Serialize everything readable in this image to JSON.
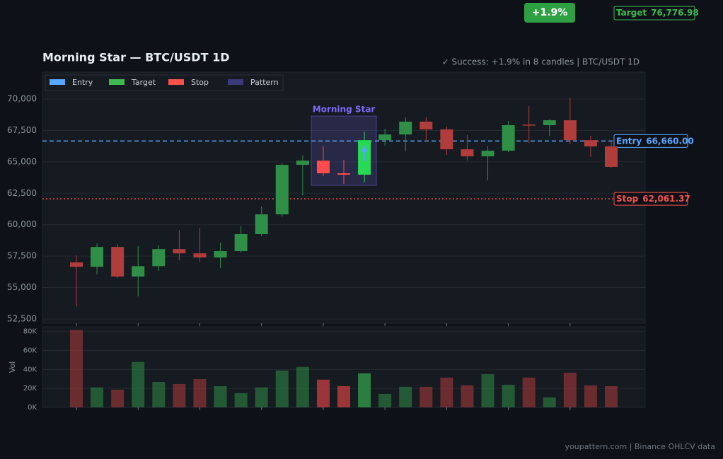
{
  "chart_data": [
    {
      "type": "candlestick",
      "title": "Morning Star  —  BTC/USDT 1D",
      "subtitle": "✓ Success: +1.9% in 8 candles  |  BTC/USDT 1D",
      "result": "+1.9%",
      "up_color": "#2f8f47",
      "down_color": "#b13c3c",
      "open": [
        57000,
        56650,
        58230,
        55870,
        56700,
        58060,
        57720,
        57390,
        57900,
        59250,
        60820,
        64760,
        65100,
        64090,
        63980,
        66730,
        67180,
        68200,
        67580,
        66000,
        65440,
        65890,
        67970,
        67920,
        68310,
        66730,
        66230
      ],
      "high": [
        57550,
        58510,
        58460,
        58290,
        58350,
        59580,
        59750,
        58570,
        59870,
        61440,
        64880,
        65500,
        66230,
        65160,
        67410,
        67640,
        68540,
        68540,
        67800,
        67130,
        66230,
        68250,
        69440,
        68370,
        70110,
        67070,
        66730
      ],
      "low": [
        53500,
        56040,
        55760,
        54290,
        56320,
        57160,
        57050,
        56540,
        57780,
        59080,
        60650,
        62340,
        63860,
        63240,
        63360,
        66290,
        65830,
        66620,
        65550,
        65100,
        63530,
        65780,
        66510,
        67070,
        66400,
        65390,
        64540
      ],
      "close": [
        56650,
        58230,
        55870,
        56700,
        58060,
        57720,
        57390,
        57900,
        59250,
        60820,
        64760,
        65100,
        64090,
        63980,
        66730,
        67180,
        68200,
        67580,
        66000,
        65440,
        65890,
        67920,
        67920,
        68310,
        66730,
        66230,
        64600
      ],
      "ylim": [
        52160,
        72140
      ],
      "yticks": [
        {
          "value": 52500,
          "label": "52,500"
        },
        {
          "value": 55000,
          "label": "55,000"
        },
        {
          "value": 57500,
          "label": "57,500"
        },
        {
          "value": 60000,
          "label": "60,000"
        },
        {
          "value": 62500,
          "label": "62,500"
        },
        {
          "value": 65000,
          "label": "65,000"
        },
        {
          "value": 67500,
          "label": "67,500"
        },
        {
          "value": 70000,
          "label": "70,000"
        }
      ],
      "grid": true,
      "pattern": {
        "label": "Morning Star",
        "start": 12,
        "end": 14,
        "color": "#7b6cf6"
      },
      "levels": [
        {
          "name": "Entry",
          "value": 66660,
          "label": "66,660.00",
          "color": "#58a6ff",
          "style": "dashed"
        },
        {
          "name": "Target",
          "value": 76776.98,
          "label": "76,776.98",
          "color": "#3fb950",
          "style": "dashed"
        },
        {
          "name": "Stop",
          "value": 62061.37,
          "label": "62,061.37",
          "color": "#f85149",
          "style": "dotted"
        }
      ],
      "legend": [
        {
          "name": "Entry",
          "color": "#58a6ff"
        },
        {
          "name": "Target",
          "color": "#3fb950"
        },
        {
          "name": "Stop",
          "color": "#f85149"
        },
        {
          "name": "Pattern",
          "color": "#3b3a7a"
        }
      ],
      "legend_position": "upper left"
    },
    {
      "type": "bar",
      "ylabel": "Vol",
      "values": [
        81500,
        21000,
        18700,
        47900,
        26900,
        24700,
        29900,
        22400,
        15000,
        21000,
        38900,
        42600,
        29200,
        22400,
        35900,
        14200,
        21700,
        21700,
        31400,
        23200,
        35100,
        23900,
        31400,
        10500,
        36600,
        23200,
        22400
      ],
      "ylim": [
        0,
        85000
      ],
      "yticks": [
        {
          "value": 0,
          "label": "0K"
        },
        {
          "value": 20000,
          "label": "20K"
        },
        {
          "value": 40000,
          "label": "40K"
        },
        {
          "value": 60000,
          "label": "60K"
        },
        {
          "value": 80000,
          "label": "80K"
        }
      ],
      "grid": true
    }
  ],
  "footer": "youpattern.com  |  Binance OHLCV data"
}
